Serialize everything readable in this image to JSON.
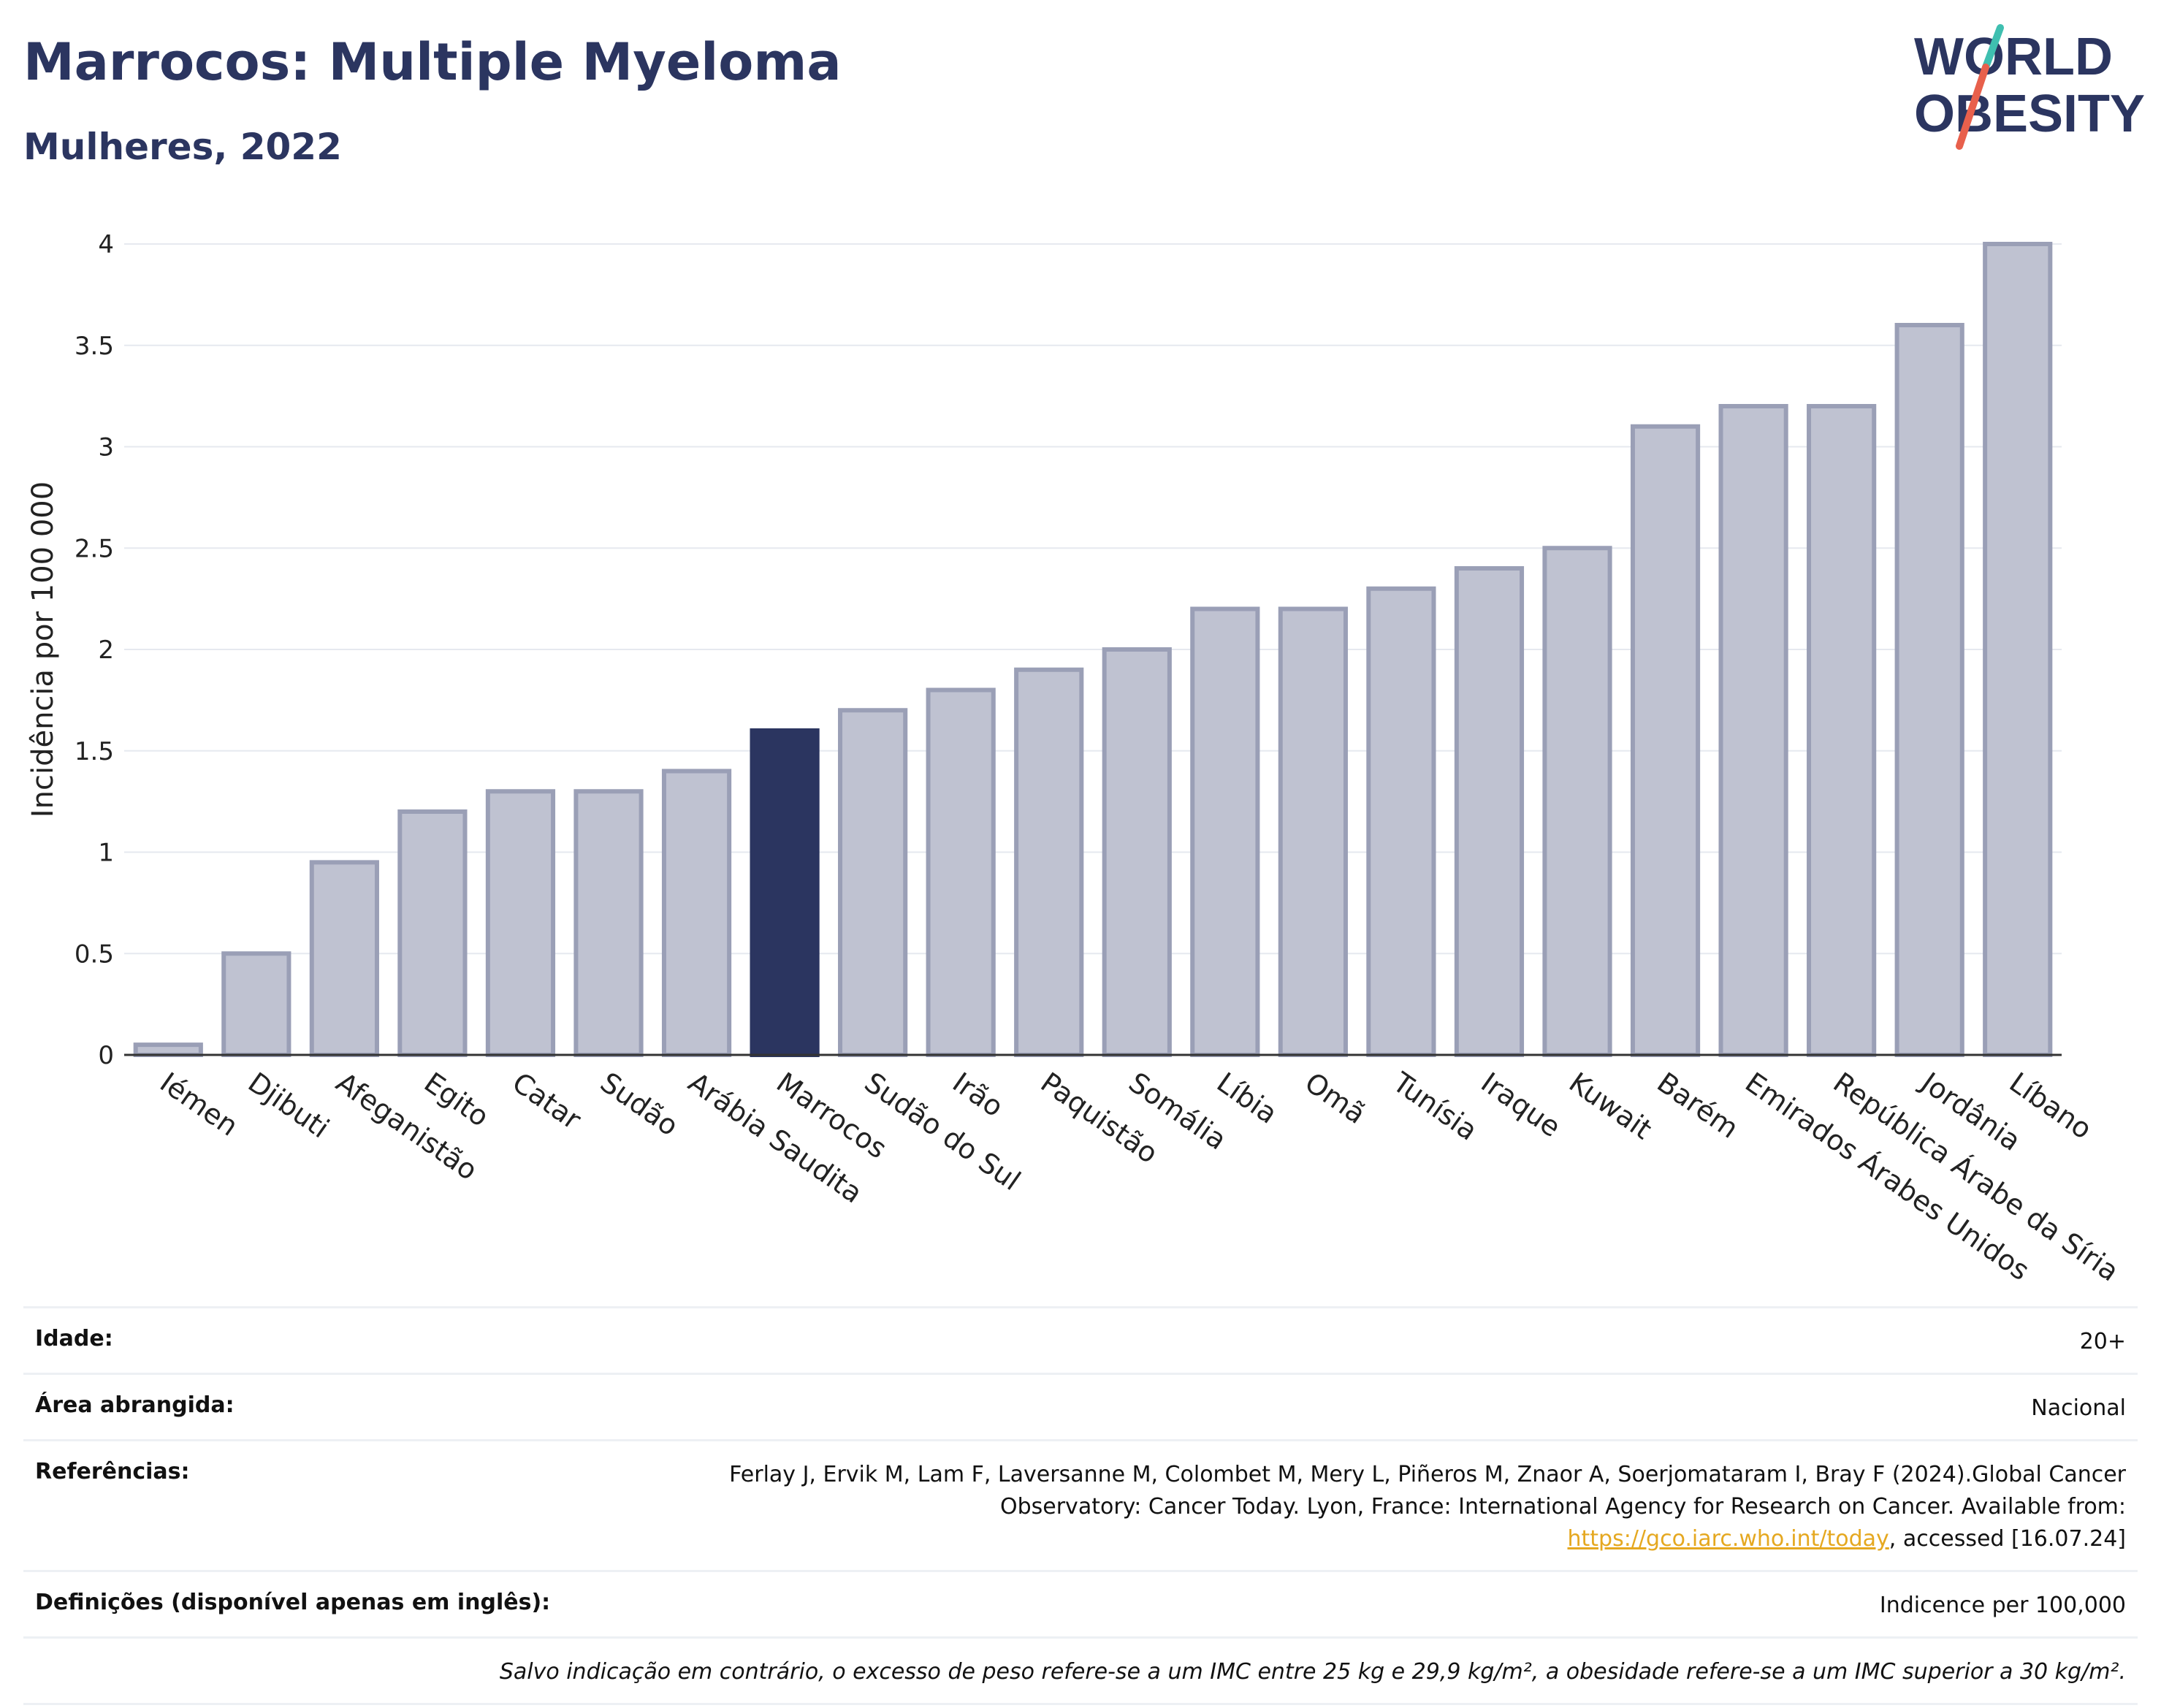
{
  "header": {
    "title": "Marrocos: Multiple Myeloma",
    "subtitle": "Mulheres, 2022"
  },
  "logo": {
    "line1": "WORLD",
    "line2": "OBESITY"
  },
  "colors": {
    "accent": "#2b3560",
    "bar": "#bfc2d1",
    "bar_border": "#9a9fb6",
    "highlight": "#2b3560",
    "link": "#e5a820",
    "logo_teal": "#3fbfb0",
    "logo_red": "#e8604c"
  },
  "chart_data": {
    "type": "bar",
    "ylabel": "Incidência por 100 000",
    "ylim": [
      0,
      4
    ],
    "yticks": [
      "0",
      "0.5",
      "1",
      "1.5",
      "2",
      "2.5",
      "3",
      "3.5",
      "4"
    ],
    "ytick_values": [
      0,
      0.5,
      1,
      1.5,
      2,
      2.5,
      3,
      3.5,
      4
    ],
    "categories": [
      "Iémen",
      "Djibuti",
      "Afeganistão",
      "Egito",
      "Catar",
      "Sudão",
      "Arábia Saudita",
      "Marrocos",
      "Sudão do Sul",
      "Irão",
      "Paquistão",
      "Somália",
      "Líbia",
      "Omã",
      "Tunísia",
      "Iraque",
      "Kuwait",
      "Barém",
      "Emirados Árabes Unidos",
      "República Árabe da Síria",
      "Jordânia",
      "Líbano"
    ],
    "values": [
      0.05,
      0.5,
      0.95,
      1.2,
      1.3,
      1.3,
      1.4,
      1.6,
      1.7,
      1.8,
      1.9,
      2.0,
      2.2,
      2.2,
      2.3,
      2.4,
      2.5,
      3.1,
      3.2,
      3.2,
      3.6,
      4.0
    ],
    "highlight": "Marrocos",
    "grid": true
  },
  "info": {
    "age_label": "Idade:",
    "age_value": "20+",
    "area_label": "Área abrangida:",
    "area_value": "Nacional",
    "ref_label": "Referências:",
    "ref_text": "Ferlay J, Ervik M, Lam F, Laversanne M, Colombet M, Mery L, Piñeros M, Znaor A, Soerjomataram I, Bray F (2024).Global Cancer Observatory: Cancer Today. Lyon, France: International Agency for Research on Cancer. Available from:",
    "ref_link": "https://gco.iarc.who.int/today",
    "ref_suffix": ", accessed [16.07.24]",
    "def_label": "Definições (disponível apenas em inglês):",
    "def_value": "Indicence per 100,000",
    "note": "Salvo indicação em contrário, o excesso de peso refere-se a um IMC entre 25 kg e 29,9 kg/m², a obesidade refere-se a um IMC superior a 30 kg/m²."
  }
}
